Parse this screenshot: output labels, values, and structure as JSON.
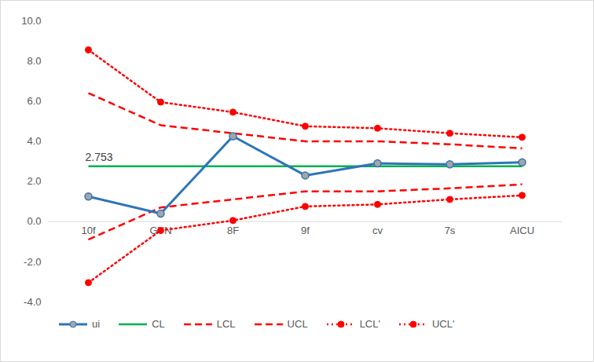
{
  "chart_data": {
    "type": "line",
    "categories": [
      "10f",
      "GYN",
      "8F",
      "9f",
      "cv",
      "7s",
      "AICU"
    ],
    "series": [
      {
        "name": "ui",
        "color": "#2e75b6",
        "line_style": "solid",
        "marker": "circle",
        "values": [
          1.25,
          0.4,
          4.25,
          2.3,
          2.9,
          2.85,
          2.95
        ]
      },
      {
        "name": "CL",
        "color": "#00b050",
        "line_style": "solid",
        "marker": "none",
        "values": [
          2.753,
          2.753,
          2.753,
          2.753,
          2.753,
          2.753,
          2.753
        ]
      },
      {
        "name": "LCL",
        "color": "#ff0000",
        "line_style": "dashed",
        "marker": "none",
        "values": [
          -0.894,
          0.706,
          1.106,
          1.506,
          1.506,
          1.656,
          1.856
        ]
      },
      {
        "name": "UCL",
        "color": "#ff0000",
        "line_style": "dashed",
        "marker": "none",
        "values": [
          6.4,
          4.8,
          4.4,
          4.0,
          4.0,
          3.85,
          3.65
        ]
      },
      {
        "name": "LCL'",
        "color": "#ff0000",
        "line_style": "dotted",
        "marker": "circle",
        "values": [
          -3.04,
          -0.44,
          0.056,
          0.756,
          0.856,
          1.106,
          1.306
        ]
      },
      {
        "name": "UCL'",
        "color": "#ff0000",
        "line_style": "dotted",
        "marker": "circle",
        "values": [
          8.55,
          5.95,
          5.45,
          4.75,
          4.65,
          4.4,
          4.2
        ]
      }
    ],
    "annotations": [
      {
        "text": "2.753",
        "category": "10f",
        "value": 2.753
      }
    ],
    "ylim": [
      -4,
      10
    ],
    "yticks": [
      {
        "value": -4,
        "label": "-4.0"
      },
      {
        "value": -2,
        "label": "-2.0"
      },
      {
        "value": 0,
        "label": "0.0"
      },
      {
        "value": 2,
        "label": "2.0"
      },
      {
        "value": 4,
        "label": "4.0"
      },
      {
        "value": 6,
        "label": "6.0"
      },
      {
        "value": 8,
        "label": "8.0"
      },
      {
        "value": 10,
        "label": "10.0"
      }
    ],
    "grid": false,
    "legend": "bottom"
  }
}
